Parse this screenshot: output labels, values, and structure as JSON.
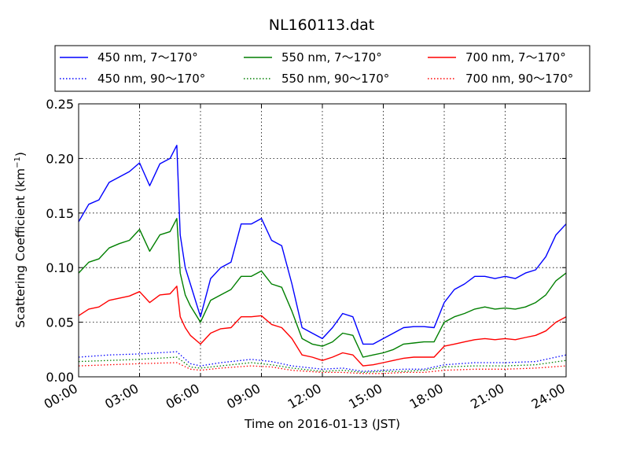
{
  "chart_data": {
    "type": "line",
    "title": "NL160113.dat",
    "xlabel": "Time on 2016-01-13 (JST)",
    "ylabel_main": "Scattering Coefficient (km",
    "ylabel_sup": "−1",
    "ylabel_close": ")",
    "xlim": [
      "00:00",
      "24:00"
    ],
    "ylim": [
      0.0,
      0.25
    ],
    "x_ticks": [
      "00:00",
      "03:00",
      "06:00",
      "09:00",
      "12:00",
      "15:00",
      "18:00",
      "21:00",
      "24:00"
    ],
    "y_ticks": [
      "0.00",
      "0.05",
      "0.10",
      "0.15",
      "0.20",
      "0.25"
    ],
    "grid": true,
    "legend_position": "top (above plot)",
    "series": [
      {
        "name": "450 nm, 7～170°",
        "color": "#0000ff",
        "style": "solid",
        "x": [
          "00:00",
          "00:30",
          "01:00",
          "01:30",
          "02:00",
          "02:30",
          "03:00",
          "03:30",
          "04:00",
          "04:30",
          "04:50",
          "05:00",
          "05:15",
          "05:30",
          "06:00",
          "06:30",
          "07:00",
          "07:30",
          "08:00",
          "08:30",
          "09:00",
          "09:30",
          "10:00",
          "10:30",
          "11:00",
          "11:30",
          "12:00",
          "12:30",
          "13:00",
          "13:30",
          "14:00",
          "14:30",
          "15:00",
          "15:30",
          "16:00",
          "16:30",
          "17:00",
          "17:30",
          "18:00",
          "18:30",
          "19:00",
          "19:30",
          "20:00",
          "20:30",
          "21:00",
          "21:30",
          "22:00",
          "22:30",
          "23:00",
          "23:30",
          "24:00"
        ],
        "y": [
          0.142,
          0.158,
          0.162,
          0.178,
          0.183,
          0.188,
          0.196,
          0.175,
          0.195,
          0.2,
          0.212,
          0.13,
          0.1,
          0.085,
          0.055,
          0.09,
          0.1,
          0.105,
          0.14,
          0.14,
          0.145,
          0.125,
          0.12,
          0.085,
          0.045,
          0.04,
          0.035,
          0.045,
          0.058,
          0.055,
          0.03,
          0.03,
          0.035,
          0.04,
          0.045,
          0.046,
          0.046,
          0.045,
          0.068,
          0.08,
          0.085,
          0.092,
          0.092,
          0.09,
          0.092,
          0.09,
          0.095,
          0.098,
          0.11,
          0.13,
          0.14
        ]
      },
      {
        "name": "550 nm, 7～170°",
        "color": "#007f00",
        "style": "solid",
        "x": [
          "00:00",
          "00:30",
          "01:00",
          "01:30",
          "02:00",
          "02:30",
          "03:00",
          "03:30",
          "04:00",
          "04:30",
          "04:50",
          "05:00",
          "05:15",
          "05:30",
          "06:00",
          "06:30",
          "07:00",
          "07:30",
          "08:00",
          "08:30",
          "09:00",
          "09:30",
          "10:00",
          "10:30",
          "11:00",
          "11:30",
          "12:00",
          "12:30",
          "13:00",
          "13:30",
          "14:00",
          "14:30",
          "15:00",
          "15:30",
          "16:00",
          "16:30",
          "17:00",
          "17:30",
          "18:00",
          "18:30",
          "19:00",
          "19:30",
          "20:00",
          "20:30",
          "21:00",
          "21:30",
          "22:00",
          "22:30",
          "23:00",
          "23:30",
          "24:00"
        ],
        "y": [
          0.095,
          0.105,
          0.108,
          0.118,
          0.122,
          0.125,
          0.135,
          0.115,
          0.13,
          0.133,
          0.145,
          0.095,
          0.075,
          0.065,
          0.05,
          0.07,
          0.075,
          0.08,
          0.092,
          0.092,
          0.097,
          0.085,
          0.082,
          0.06,
          0.035,
          0.03,
          0.028,
          0.032,
          0.04,
          0.038,
          0.018,
          0.02,
          0.022,
          0.025,
          0.03,
          0.031,
          0.032,
          0.032,
          0.05,
          0.055,
          0.058,
          0.062,
          0.064,
          0.062,
          0.063,
          0.062,
          0.064,
          0.068,
          0.075,
          0.088,
          0.095
        ]
      },
      {
        "name": "700 nm, 7～170°",
        "color": "#ff0000",
        "style": "solid",
        "x": [
          "00:00",
          "00:30",
          "01:00",
          "01:30",
          "02:00",
          "02:30",
          "03:00",
          "03:30",
          "04:00",
          "04:30",
          "04:50",
          "05:00",
          "05:15",
          "05:30",
          "06:00",
          "06:30",
          "07:00",
          "07:30",
          "08:00",
          "08:30",
          "09:00",
          "09:30",
          "10:00",
          "10:30",
          "11:00",
          "11:30",
          "12:00",
          "12:30",
          "13:00",
          "13:30",
          "14:00",
          "14:30",
          "15:00",
          "15:30",
          "16:00",
          "16:30",
          "17:00",
          "17:30",
          "18:00",
          "18:30",
          "19:00",
          "19:30",
          "20:00",
          "20:30",
          "21:00",
          "21:30",
          "22:00",
          "22:30",
          "23:00",
          "23:30",
          "24:00"
        ],
        "y": [
          0.056,
          0.062,
          0.064,
          0.07,
          0.072,
          0.074,
          0.078,
          0.068,
          0.075,
          0.076,
          0.083,
          0.055,
          0.045,
          0.038,
          0.03,
          0.04,
          0.044,
          0.045,
          0.055,
          0.055,
          0.056,
          0.048,
          0.045,
          0.035,
          0.02,
          0.018,
          0.015,
          0.018,
          0.022,
          0.02,
          0.01,
          0.011,
          0.013,
          0.015,
          0.017,
          0.018,
          0.018,
          0.018,
          0.028,
          0.03,
          0.032,
          0.034,
          0.035,
          0.034,
          0.035,
          0.034,
          0.036,
          0.038,
          0.042,
          0.05,
          0.055
        ]
      },
      {
        "name": "450 nm, 90～170°",
        "color": "#0000ff",
        "style": "dotted",
        "x": [
          "00:00",
          "01:30",
          "03:00",
          "04:50",
          "05:30",
          "06:00",
          "07:00",
          "08:30",
          "09:30",
          "10:30",
          "12:00",
          "13:00",
          "14:00",
          "15:00",
          "16:00",
          "17:00",
          "18:00",
          "19:30",
          "21:00",
          "22:30",
          "24:00"
        ],
        "y": [
          0.018,
          0.02,
          0.021,
          0.023,
          0.012,
          0.01,
          0.013,
          0.016,
          0.014,
          0.01,
          0.007,
          0.008,
          0.005,
          0.006,
          0.007,
          0.007,
          0.011,
          0.013,
          0.013,
          0.014,
          0.02
        ]
      },
      {
        "name": "550 nm, 90～170°",
        "color": "#007f00",
        "style": "dotted",
        "x": [
          "00:00",
          "01:30",
          "03:00",
          "04:50",
          "05:30",
          "06:00",
          "07:00",
          "08:30",
          "09:30",
          "10:30",
          "12:00",
          "13:00",
          "14:00",
          "15:00",
          "16:00",
          "17:00",
          "18:00",
          "19:30",
          "21:00",
          "22:30",
          "24:00"
        ],
        "y": [
          0.014,
          0.015,
          0.016,
          0.018,
          0.009,
          0.008,
          0.01,
          0.013,
          0.011,
          0.008,
          0.005,
          0.006,
          0.004,
          0.005,
          0.005,
          0.006,
          0.009,
          0.01,
          0.01,
          0.011,
          0.015
        ]
      },
      {
        "name": "700 nm, 90～170°",
        "color": "#ff0000",
        "style": "dotted",
        "x": [
          "00:00",
          "01:30",
          "03:00",
          "04:50",
          "05:30",
          "06:00",
          "07:00",
          "08:30",
          "09:30",
          "10:30",
          "12:00",
          "13:00",
          "14:00",
          "15:00",
          "16:00",
          "17:00",
          "18:00",
          "19:30",
          "21:00",
          "22:30",
          "24:00"
        ],
        "y": [
          0.01,
          0.011,
          0.012,
          0.013,
          0.007,
          0.006,
          0.008,
          0.01,
          0.009,
          0.006,
          0.004,
          0.004,
          0.003,
          0.003,
          0.004,
          0.004,
          0.006,
          0.007,
          0.007,
          0.008,
          0.01
        ]
      }
    ],
    "legend_order": [
      0,
      1,
      2,
      3,
      4,
      5
    ]
  }
}
